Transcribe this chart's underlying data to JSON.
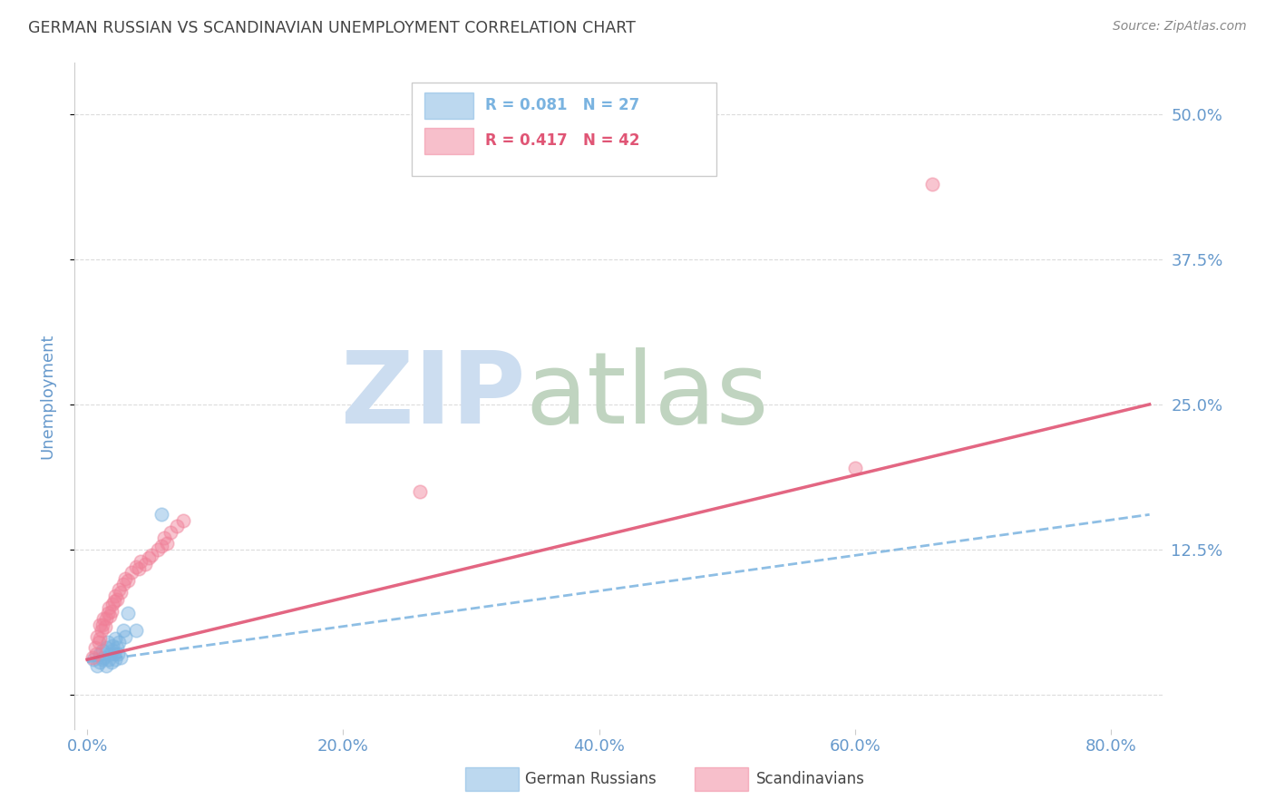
{
  "title": "GERMAN RUSSIAN VS SCANDINAVIAN UNEMPLOYMENT CORRELATION CHART",
  "source": "Source: ZipAtlas.com",
  "xlabel_ticks": [
    "0.0%",
    "20.0%",
    "40.0%",
    "60.0%",
    "80.0%"
  ],
  "xlabel_tick_vals": [
    0.0,
    0.2,
    0.4,
    0.6,
    0.8
  ],
  "ylabel": "Unemployment",
  "ytick_vals": [
    0.0,
    0.125,
    0.25,
    0.375,
    0.5
  ],
  "ytick_labels": [
    "",
    "12.5%",
    "25.0%",
    "37.5%",
    "50.0%"
  ],
  "xlim": [
    -0.01,
    0.84
  ],
  "ylim": [
    -0.03,
    0.545
  ],
  "blue_scatter_x": [
    0.005,
    0.008,
    0.01,
    0.01,
    0.012,
    0.012,
    0.013,
    0.015,
    0.015,
    0.016,
    0.017,
    0.018,
    0.019,
    0.02,
    0.02,
    0.021,
    0.022,
    0.022,
    0.023,
    0.024,
    0.025,
    0.026,
    0.028,
    0.03,
    0.032,
    0.038,
    0.058
  ],
  "blue_scatter_y": [
    0.03,
    0.025,
    0.028,
    0.035,
    0.03,
    0.038,
    0.032,
    0.025,
    0.04,
    0.045,
    0.03,
    0.035,
    0.028,
    0.042,
    0.038,
    0.035,
    0.03,
    0.048,
    0.04,
    0.035,
    0.045,
    0.032,
    0.055,
    0.05,
    0.07,
    0.055,
    0.155
  ],
  "pink_scatter_x": [
    0.004,
    0.006,
    0.007,
    0.008,
    0.009,
    0.01,
    0.01,
    0.011,
    0.012,
    0.013,
    0.014,
    0.015,
    0.016,
    0.017,
    0.018,
    0.019,
    0.02,
    0.021,
    0.022,
    0.023,
    0.025,
    0.026,
    0.028,
    0.03,
    0.032,
    0.035,
    0.038,
    0.04,
    0.042,
    0.045,
    0.048,
    0.05,
    0.055,
    0.058,
    0.06,
    0.062,
    0.065,
    0.07,
    0.075,
    0.6,
    0.66,
    0.26
  ],
  "pink_scatter_y": [
    0.032,
    0.04,
    0.035,
    0.05,
    0.045,
    0.048,
    0.06,
    0.055,
    0.06,
    0.065,
    0.058,
    0.065,
    0.07,
    0.075,
    0.068,
    0.072,
    0.078,
    0.08,
    0.085,
    0.082,
    0.09,
    0.088,
    0.095,
    0.1,
    0.098,
    0.105,
    0.11,
    0.108,
    0.115,
    0.112,
    0.118,
    0.12,
    0.125,
    0.128,
    0.135,
    0.13,
    0.14,
    0.145,
    0.15,
    0.195,
    0.44,
    0.175
  ],
  "blue_line_x0": 0.0,
  "blue_line_x1": 0.83,
  "blue_line_y0": 0.028,
  "blue_line_y1": 0.155,
  "pink_line_x0": 0.0,
  "pink_line_x1": 0.83,
  "pink_line_y0": 0.03,
  "pink_line_y1": 0.25,
  "scatter_size": 110,
  "scatter_alpha": 0.45,
  "blue_color": "#7ab3e0",
  "pink_color": "#f08098",
  "blue_line_color": "#7ab3e0",
  "pink_line_color": "#e05575",
  "watermark_zip_color": "#ccddf0",
  "watermark_atlas_color": "#c0d4c0",
  "background_color": "#ffffff",
  "grid_color": "#cccccc",
  "title_color": "#444444",
  "tick_label_color": "#6699cc",
  "source_color": "#888888"
}
